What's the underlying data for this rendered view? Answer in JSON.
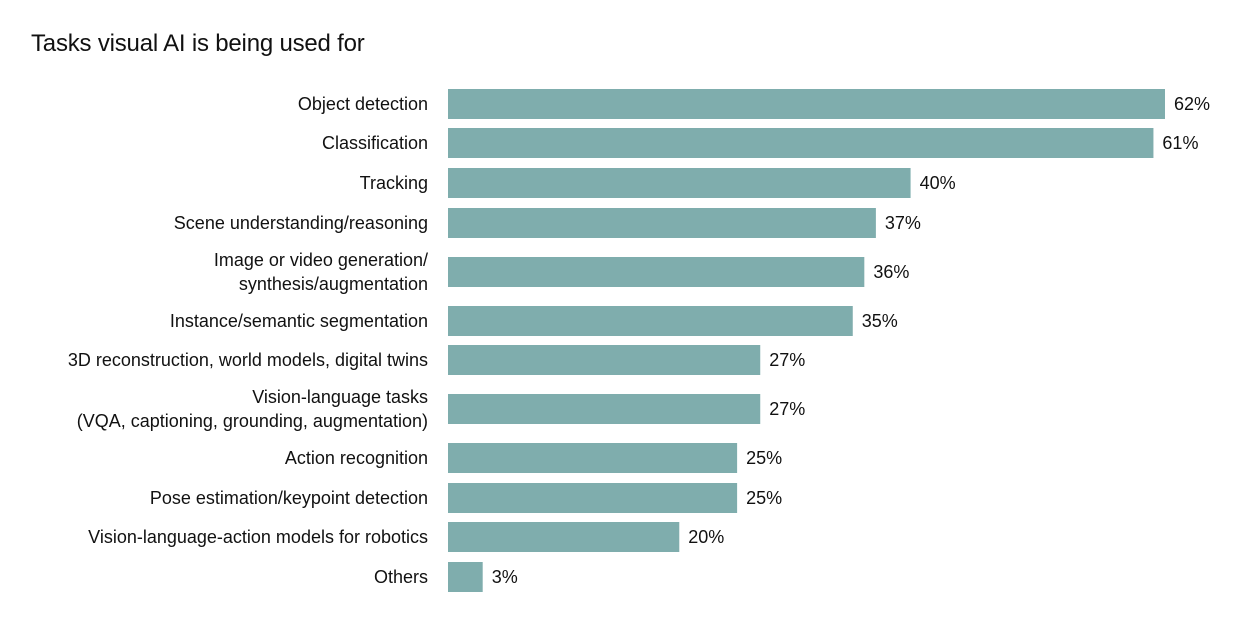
{
  "chart_data": {
    "type": "bar",
    "orientation": "horizontal",
    "title": "Tasks visual AI is being used for",
    "xlabel": "",
    "ylabel": "",
    "xlim": [
      0,
      62
    ],
    "grid": false,
    "legend": "none",
    "bar_color": "#7fadad",
    "value_suffix": "%",
    "categories": [
      [
        "Object detection"
      ],
      [
        "Classification"
      ],
      [
        "Tracking"
      ],
      [
        "Scene understanding/reasoning"
      ],
      [
        "Image or video generation/",
        "synthesis/augmentation"
      ],
      [
        "Instance/semantic segmentation"
      ],
      [
        "3D reconstruction, world models, digital twins"
      ],
      [
        "Vision-language tasks",
        "(VQA, captioning, grounding, augmentation)"
      ],
      [
        "Action recognition"
      ],
      [
        "Pose estimation/keypoint detection"
      ],
      [
        "Vision-language-action models for robotics"
      ],
      [
        "Others"
      ]
    ],
    "values": [
      62,
      61,
      40,
      37,
      36,
      35,
      27,
      27,
      25,
      25,
      20,
      3
    ],
    "value_labels": [
      "62%",
      "61%",
      "40%",
      "37%",
      "36%",
      "35%",
      "27%",
      "27%",
      "25%",
      "25%",
      "20%",
      "3%"
    ]
  }
}
